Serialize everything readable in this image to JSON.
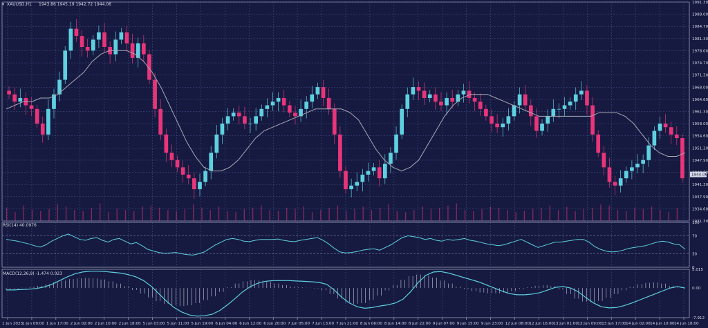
{
  "header": {
    "symbol": "XAUUSD,H1",
    "ohlc": "1943.86 1945.19 1942.72 1944.06"
  },
  "colors": {
    "background": "#161a40",
    "grid": "#4a5290",
    "bull": "#5fd0e0",
    "bear": "#e8357a",
    "ma": "#a9a9b6",
    "indicator": "#5fd0e0",
    "price_tag": "#d7dae8"
  },
  "chart_data": [
    {
      "panel": "price",
      "type": "candlestick",
      "y_ticks": [
        "1991.30",
        "1988.00",
        "1984.70",
        "1981.30",
        "1978.00",
        "1974.70",
        "1971.30",
        "1968.00",
        "1964.60",
        "1961.30",
        "1958.00",
        "1954.60",
        "1951.30",
        "1947.90",
        "1944.60",
        "1941.30",
        "1937.90",
        "1934.60",
        "1931.30"
      ],
      "ylim": [
        1931.3,
        1991.3
      ],
      "last_price": "1944.06",
      "x_ticks": [
        "1 Jun 2023",
        "1 Jun 09:00",
        "1 Jun 17:00",
        "2 Jun 02:00",
        "2 Jun 10:00",
        "2 Jun 18:00",
        "5 Jun 03:00",
        "5 Jun 11:00",
        "5 Jun 19:00",
        "6 Jun 04:00",
        "6 Jun 12:00",
        "6 Jun 20:00",
        "7 Jun 05:00",
        "7 Jun 13:00",
        "7 Jun 21:00",
        "8 Jun 06:00",
        "8 Jun 14:00",
        "8 Jun 22:00",
        "9 Jun 07:00",
        "9 Jun 15:00",
        "9 Jun 23:00",
        "12 Jun 08:00",
        "12 Jun 16:00",
        "13 Jun 01:00",
        "13 Jun 09:00",
        "13 Jun 17:00",
        "14 Jun 02:00",
        "14 Jun 10:00",
        "14 Jun 18:00"
      ],
      "close_path": [
        1966,
        1964,
        1965,
        1963,
        1962,
        1958,
        1955,
        1962,
        1966,
        1970,
        1978,
        1984,
        1982,
        1979,
        1978,
        1981,
        1983,
        1979,
        1977,
        1981,
        1983,
        1980,
        1976,
        1980,
        1977,
        1970,
        1962,
        1955,
        1950,
        1948,
        1946,
        1944,
        1943,
        1940,
        1942,
        1945,
        1950,
        1955,
        1958,
        1960,
        1961,
        1960,
        1958,
        1958,
        1960,
        1962,
        1963,
        1964,
        1965,
        1963,
        1961,
        1960,
        1962,
        1964,
        1966,
        1968,
        1965,
        1962,
        1955,
        1945,
        1940,
        1941,
        1942,
        1944,
        1945,
        1946,
        1943,
        1947,
        1950,
        1955,
        1962,
        1966,
        1968,
        1967,
        1965,
        1966,
        1964,
        1963,
        1965,
        1964,
        1966,
        1967,
        1965,
        1964,
        1962,
        1960,
        1958,
        1957,
        1958,
        1960,
        1963,
        1966,
        1963,
        1960,
        1956,
        1958,
        1960,
        1962,
        1962,
        1963,
        1964,
        1966,
        1967,
        1963,
        1955,
        1950,
        1946,
        1942,
        1941,
        1943,
        1945,
        1946,
        1947,
        1948,
        1952,
        1956,
        1958,
        1957,
        1955,
        1954,
        1943
      ],
      "ma_path": [
        1962,
        1963,
        1964,
        1964,
        1965,
        1965,
        1966,
        1968,
        1970,
        1972,
        1975,
        1977,
        1978,
        1978,
        1978,
        1977,
        1975,
        1972,
        1968,
        1963,
        1958,
        1953,
        1949,
        1946,
        1945,
        1945,
        1946,
        1948,
        1951,
        1954,
        1956,
        1957,
        1958,
        1959,
        1960,
        1961,
        1962,
        1962,
        1962,
        1962,
        1961,
        1959,
        1955,
        1951,
        1948,
        1946,
        1945,
        1946,
        1948,
        1952,
        1956,
        1960,
        1963,
        1965,
        1966,
        1966,
        1966,
        1965,
        1964,
        1963,
        1962,
        1961,
        1960,
        1960,
        1960,
        1960,
        1960,
        1960,
        1960,
        1961,
        1961,
        1961,
        1960,
        1958,
        1955,
        1952,
        1950,
        1949,
        1949,
        1950
      ],
      "volume": [
        12,
        8,
        14,
        10,
        9,
        11,
        15,
        13,
        10,
        9,
        12,
        16,
        8,
        11,
        10,
        9,
        13,
        14,
        12,
        10,
        9,
        11,
        15,
        12,
        10,
        13,
        9,
        8,
        11,
        12,
        14,
        10,
        9,
        12,
        11,
        13,
        8,
        10,
        12,
        14,
        9,
        11,
        13,
        10,
        12,
        15,
        9,
        8,
        10,
        13,
        11,
        12,
        14,
        16,
        10,
        9,
        11,
        13,
        12,
        10,
        8,
        9,
        11,
        12,
        14,
        10,
        13,
        9,
        11,
        12,
        15,
        14,
        10,
        9,
        12,
        11,
        13,
        10,
        8,
        12
      ]
    },
    {
      "panel": "rsi",
      "type": "line",
      "label": "RSI(14) 40.0976",
      "y_ticks": [
        "100",
        "70",
        "30",
        "0"
      ],
      "ylim": [
        0,
        100
      ],
      "values": [
        62,
        60,
        58,
        55,
        52,
        48,
        45,
        50,
        58,
        64,
        70,
        74,
        68,
        62,
        60,
        64,
        66,
        60,
        56,
        62,
        64,
        58,
        52,
        55,
        48,
        40,
        36,
        33,
        31,
        32,
        33,
        30,
        28,
        27,
        30,
        34,
        42,
        50,
        56,
        62,
        64,
        62,
        58,
        57,
        60,
        62,
        62,
        62,
        63,
        60,
        58,
        57,
        60,
        62,
        64,
        66,
        60,
        52,
        42,
        34,
        32,
        33,
        35,
        38,
        40,
        41,
        38,
        44,
        50,
        58,
        66,
        70,
        68,
        66,
        62,
        64,
        60,
        58,
        62,
        60,
        62,
        64,
        60,
        58,
        55,
        52,
        50,
        48,
        50,
        54,
        58,
        62,
        56,
        50,
        44,
        48,
        52,
        56,
        56,
        58,
        60,
        62,
        62,
        56,
        46,
        40,
        36,
        34,
        35,
        38,
        42,
        44,
        46,
        48,
        52,
        56,
        58,
        56,
        52,
        50,
        40
      ]
    },
    {
      "panel": "macd",
      "type": "line",
      "label": "MACD(12,26,9) -1.474 0.023",
      "y_ticks": [
        "5.015",
        "0.00",
        "-7.912"
      ],
      "ylim": [
        -7.912,
        5.015
      ],
      "signal": [
        -0.5,
        -0.5,
        -0.4,
        -0.3,
        -0.1,
        0.3,
        1.0,
        2.0,
        3.0,
        3.8,
        4.3,
        4.5,
        4.5,
        4.4,
        4.2,
        4.0,
        3.6,
        3.0,
        2.0,
        0.5,
        -1.5,
        -3.5,
        -5.2,
        -6.4,
        -7.2,
        -7.5,
        -7.4,
        -7.0,
        -6.0,
        -4.5,
        -2.8,
        -1.0,
        0.4,
        1.3,
        1.8,
        2.0,
        2.0,
        2.0,
        1.9,
        1.8,
        1.7,
        1.5,
        1.0,
        -0.5,
        -2.5,
        -4.0,
        -5.0,
        -5.4,
        -5.2,
        -4.8,
        -4.5,
        -4.0,
        -3.0,
        -1.0,
        1.5,
        3.4,
        4.3,
        4.4,
        4.0,
        3.4,
        2.8,
        2.2,
        1.6,
        0.8,
        0,
        -0.8,
        -1.5,
        -1.8,
        -1.8,
        -1.6,
        -1.2,
        -0.5,
        0.2,
        0.4,
        0.0,
        -1.0,
        -2.6,
        -4.0,
        -5.0,
        -5.3,
        -5.2,
        -4.7,
        -4.0,
        -3.2,
        -2.4,
        -1.6,
        -0.8,
        0.0,
        0.4,
        0.0
      ],
      "histogram": [
        -0.4,
        -0.2,
        0.1,
        0.3,
        0.6,
        1.0,
        1.5,
        2.0,
        2.4,
        2.6,
        2.7,
        2.6,
        2.3,
        1.8,
        1.2,
        0.5,
        -0.5,
        -1.5,
        -2.5,
        -3.5,
        -4.2,
        -4.6,
        -4.8,
        -4.6,
        -4.0,
        -3.2,
        -2.2,
        -1.0,
        0.2,
        1.2,
        1.8,
        2.1,
        2.0,
        1.6,
        1.2,
        0.8,
        0.4,
        0.2,
        0.1,
        -0.1,
        -0.6,
        -1.6,
        -2.8,
        -3.8,
        -4.2,
        -4.0,
        -3.2,
        -2.0,
        -0.6,
        0.8,
        2.2,
        3.2,
        3.6,
        3.4,
        2.8,
        2.0,
        1.2,
        0.4,
        -0.3,
        -0.8,
        -1.2,
        -1.4,
        -1.4,
        -1.2,
        -0.8,
        -0.3,
        0.2,
        0.6,
        0.8,
        0.5,
        -0.4,
        -1.6,
        -2.8,
        -3.6,
        -3.8,
        -3.4,
        -2.6,
        -1.6,
        -0.6,
        0.3,
        1.0,
        1.4,
        1.5,
        1.2,
        0.6,
        0.1
      ]
    }
  ]
}
